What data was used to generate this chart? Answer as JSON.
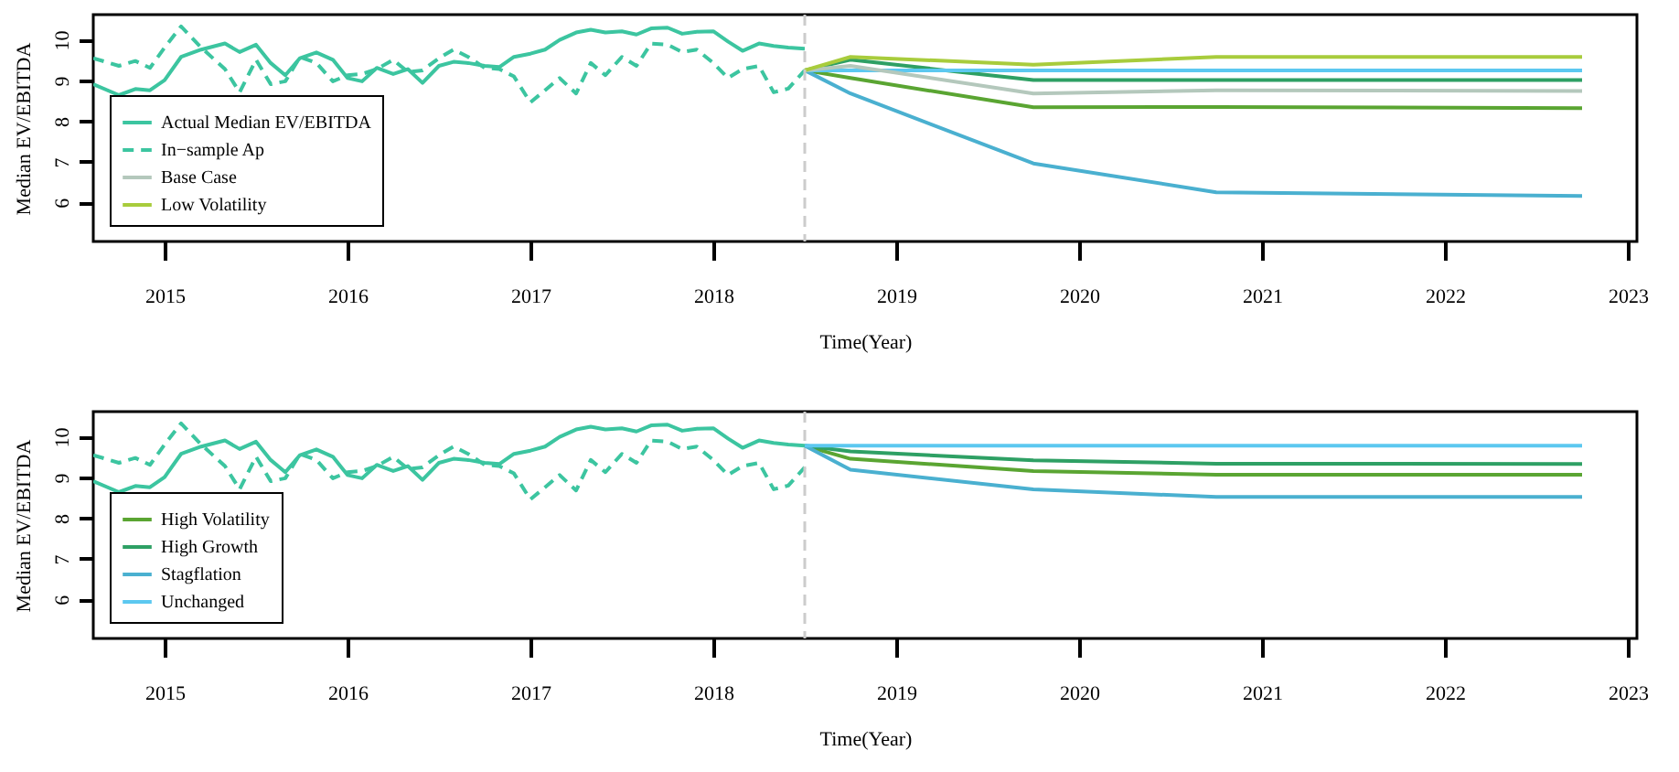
{
  "chart_data": [
    {
      "type": "line",
      "xlabel": "Time(Year)",
      "ylabel": "Median EV/EBITDA",
      "xlim": [
        2014.61,
        2023.05
      ],
      "xticks": [
        2015,
        2016,
        2017,
        2018,
        2019,
        2020,
        2021,
        2022,
        2023
      ],
      "ylim": [
        5.04,
        10.62
      ],
      "yticks": [
        6,
        7,
        8,
        9,
        10
      ],
      "grid": false,
      "legend": "bottom left",
      "ref_lines": [
        {
          "axis": "x",
          "value": 2018.5,
          "color": "#cccccc",
          "line_style": "dashed"
        }
      ],
      "series": [
        {
          "name": "Actual Median EV/EBITDA",
          "color": "#3cc5a0",
          "line_style": "solid",
          "x": [
            2014.61,
            2014.75,
            2014.84,
            2014.92,
            2015.0,
            2015.09,
            2015.2,
            2015.33,
            2015.41,
            2015.5,
            2015.58,
            2015.66,
            2015.74,
            2015.83,
            2015.92,
            2016.0,
            2016.08,
            2016.16,
            2016.25,
            2016.33,
            2016.41,
            2016.5,
            2016.58,
            2016.66,
            2016.75,
            2016.83,
            2016.91,
            2017.0,
            2017.08,
            2017.16,
            2017.25,
            2017.33,
            2017.41,
            2017.5,
            2017.58,
            2017.66,
            2017.75,
            2017.83,
            2017.91,
            2018.0,
            2018.08,
            2018.16,
            2018.25,
            2018.33,
            2018.41,
            2018.5
          ],
          "values": [
            8.91,
            8.64,
            8.79,
            8.76,
            9.01,
            9.58,
            9.76,
            9.91,
            9.7,
            9.88,
            9.43,
            9.13,
            9.55,
            9.69,
            9.51,
            9.06,
            8.98,
            9.31,
            9.16,
            9.28,
            8.94,
            9.36,
            9.46,
            9.43,
            9.36,
            9.33,
            9.58,
            9.66,
            9.76,
            10.0,
            10.18,
            10.25,
            10.18,
            10.21,
            10.13,
            10.28,
            10.3,
            10.15,
            10.2,
            10.21,
            9.96,
            9.73,
            9.91,
            9.85,
            9.81,
            9.78
          ]
        },
        {
          "name": "In−sample Ap",
          "color": "#3cc5a0",
          "line_style": "dashed",
          "x": [
            2014.61,
            2014.75,
            2014.84,
            2014.92,
            2015.0,
            2015.09,
            2015.2,
            2015.33,
            2015.41,
            2015.5,
            2015.58,
            2015.66,
            2015.74,
            2015.83,
            2015.92,
            2016.0,
            2016.08,
            2016.16,
            2016.25,
            2016.33,
            2016.41,
            2016.5,
            2016.58,
            2016.66,
            2016.75,
            2016.83,
            2016.91,
            2017.0,
            2017.08,
            2017.16,
            2017.25,
            2017.33,
            2017.41,
            2017.5,
            2017.58,
            2017.66,
            2017.75,
            2017.83,
            2017.91,
            2018.0,
            2018.08,
            2018.16,
            2018.25,
            2018.33,
            2018.41,
            2018.5
          ],
          "values": [
            9.55,
            9.36,
            9.48,
            9.31,
            9.81,
            10.33,
            9.81,
            9.28,
            8.71,
            9.51,
            8.91,
            8.98,
            9.58,
            9.43,
            8.98,
            9.13,
            9.16,
            9.28,
            9.51,
            9.21,
            9.25,
            9.55,
            9.76,
            9.58,
            9.31,
            9.28,
            9.1,
            8.46,
            8.76,
            9.06,
            8.68,
            9.43,
            9.13,
            9.58,
            9.36,
            9.91,
            9.88,
            9.7,
            9.76,
            9.43,
            9.06,
            9.28,
            9.36,
            8.71,
            8.8,
            9.25
          ]
        },
        {
          "name": "Base Case",
          "color": "#b4c8bc",
          "x": [
            2018.5,
            2018.75,
            2019.75,
            2020.75,
            2022.75
          ],
          "values": [
            9.25,
            9.36,
            8.68,
            8.76,
            8.74
          ]
        },
        {
          "name": "Low Volatility",
          "color": "#a8cc3c",
          "x": [
            2018.5,
            2018.75,
            2019.75,
            2020.75,
            2022.75
          ],
          "values": [
            9.25,
            9.58,
            9.39,
            9.58,
            9.58
          ]
        },
        {
          "color": "#5aa532",
          "x": [
            2018.5,
            2018.75,
            2019.75,
            2020.75,
            2022.75
          ],
          "values": [
            9.25,
            9.06,
            8.34,
            8.35,
            8.32
          ]
        },
        {
          "color": "#2ea064",
          "x": [
            2018.5,
            2018.75,
            2019.75,
            2020.75,
            2022.75
          ],
          "values": [
            9.25,
            9.51,
            9.01,
            9.01,
            9.01
          ]
        },
        {
          "color": "#4ab0d0",
          "x": [
            2018.5,
            2018.75,
            2019.75,
            2020.75,
            2022.75
          ],
          "values": [
            9.25,
            8.68,
            6.96,
            6.25,
            6.16
          ]
        },
        {
          "color": "#5cc8f0",
          "x": [
            2018.5,
            2022.75
          ],
          "values": [
            9.25,
            9.25
          ]
        }
      ]
    },
    {
      "type": "line",
      "xlabel": "Time(Year)",
      "ylabel": "Median EV/EBITDA",
      "xlim": [
        2014.61,
        2023.05
      ],
      "xticks": [
        2015,
        2016,
        2017,
        2018,
        2019,
        2020,
        2021,
        2022,
        2023
      ],
      "ylim": [
        5.04,
        10.62
      ],
      "yticks": [
        6,
        7,
        8,
        9,
        10
      ],
      "grid": false,
      "legend": "bottom left",
      "ref_lines": [
        {
          "axis": "x",
          "value": 2018.5,
          "color": "#cccccc",
          "line_style": "dashed"
        }
      ],
      "series": [
        {
          "color": "#3cc5a0",
          "line_style": "solid",
          "x": [
            2014.61,
            2014.75,
            2014.84,
            2014.92,
            2015.0,
            2015.09,
            2015.2,
            2015.33,
            2015.41,
            2015.5,
            2015.58,
            2015.66,
            2015.74,
            2015.83,
            2015.92,
            2016.0,
            2016.08,
            2016.16,
            2016.25,
            2016.33,
            2016.41,
            2016.5,
            2016.58,
            2016.66,
            2016.75,
            2016.83,
            2016.91,
            2017.0,
            2017.08,
            2017.16,
            2017.25,
            2017.33,
            2017.41,
            2017.5,
            2017.58,
            2017.66,
            2017.75,
            2017.83,
            2017.91,
            2018.0,
            2018.08,
            2018.16,
            2018.25,
            2018.33,
            2018.41,
            2018.5
          ],
          "values": [
            8.91,
            8.64,
            8.79,
            8.76,
            9.01,
            9.58,
            9.76,
            9.91,
            9.7,
            9.88,
            9.43,
            9.13,
            9.55,
            9.69,
            9.51,
            9.06,
            8.98,
            9.31,
            9.16,
            9.28,
            8.94,
            9.36,
            9.46,
            9.43,
            9.36,
            9.33,
            9.58,
            9.66,
            9.76,
            10.0,
            10.18,
            10.25,
            10.18,
            10.21,
            10.13,
            10.28,
            10.3,
            10.15,
            10.2,
            10.21,
            9.96,
            9.73,
            9.91,
            9.85,
            9.81,
            9.78
          ]
        },
        {
          "color": "#3cc5a0",
          "line_style": "dashed",
          "x": [
            2014.61,
            2014.75,
            2014.84,
            2014.92,
            2015.0,
            2015.09,
            2015.2,
            2015.33,
            2015.41,
            2015.5,
            2015.58,
            2015.66,
            2015.74,
            2015.83,
            2015.92,
            2016.0,
            2016.08,
            2016.16,
            2016.25,
            2016.33,
            2016.41,
            2016.5,
            2016.58,
            2016.66,
            2016.75,
            2016.83,
            2016.91,
            2017.0,
            2017.08,
            2017.16,
            2017.25,
            2017.33,
            2017.41,
            2017.5,
            2017.58,
            2017.66,
            2017.75,
            2017.83,
            2017.91,
            2018.0,
            2018.08,
            2018.16,
            2018.25,
            2018.33,
            2018.41,
            2018.5
          ],
          "values": [
            9.55,
            9.36,
            9.48,
            9.31,
            9.81,
            10.33,
            9.81,
            9.28,
            8.71,
            9.51,
            8.91,
            8.98,
            9.58,
            9.43,
            8.98,
            9.13,
            9.16,
            9.28,
            9.51,
            9.21,
            9.25,
            9.55,
            9.76,
            9.58,
            9.31,
            9.28,
            9.1,
            8.46,
            8.76,
            9.06,
            8.68,
            9.43,
            9.13,
            9.58,
            9.36,
            9.91,
            9.88,
            9.7,
            9.76,
            9.43,
            9.06,
            9.28,
            9.36,
            8.71,
            8.8,
            9.25
          ]
        },
        {
          "name": "High Volatility",
          "color": "#5aa532",
          "x": [
            2018.5,
            2018.75,
            2019.75,
            2020.75,
            2022.75
          ],
          "values": [
            9.78,
            9.46,
            9.16,
            9.07,
            9.07
          ]
        },
        {
          "name": "High Growth",
          "color": "#2ea064",
          "x": [
            2018.5,
            2018.75,
            2019.75,
            2020.75,
            2022.75
          ],
          "values": [
            9.78,
            9.64,
            9.42,
            9.34,
            9.33
          ]
        },
        {
          "name": "Stagflation",
          "color": "#4ab0d0",
          "x": [
            2018.5,
            2018.75,
            2019.75,
            2020.75,
            2022.75
          ],
          "values": [
            9.78,
            9.19,
            8.71,
            8.52,
            8.52
          ]
        },
        {
          "name": "Unchanged",
          "color": "#5cc8f0",
          "x": [
            2018.5,
            2022.75
          ],
          "values": [
            9.78,
            9.78
          ]
        }
      ]
    }
  ]
}
